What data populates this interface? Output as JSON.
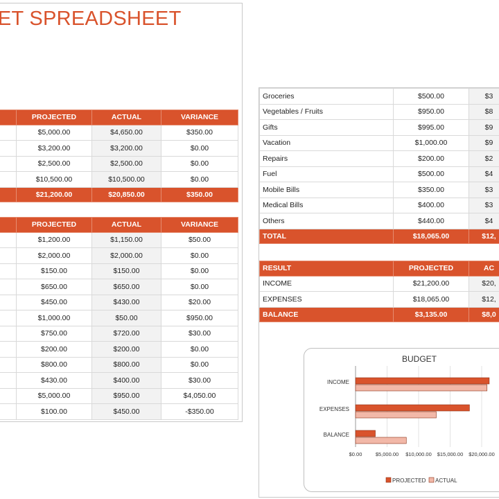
{
  "title": "GET SPREADSHEET",
  "income_table": {
    "headers": [
      "PROJECTED",
      "ACTUAL",
      "VARIANCE"
    ],
    "rows": [
      [
        "$5,000.00",
        "$4,650.00",
        "$350.00"
      ],
      [
        "$3,200.00",
        "$3,200.00",
        "$0.00"
      ],
      [
        "$2,500.00",
        "$2,500.00",
        "$0.00"
      ],
      [
        "$10,500.00",
        "$10,500.00",
        "$0.00"
      ]
    ],
    "total": [
      "$21,200.00",
      "$20,850.00",
      "$350.00"
    ]
  },
  "expense_table": {
    "headers": [
      "PROJECTED",
      "ACTUAL",
      "VARIANCE"
    ],
    "rows": [
      [
        "$1,200.00",
        "$1,150.00",
        "$50.00"
      ],
      [
        "$2,000.00",
        "$2,000.00",
        "$0.00"
      ],
      [
        "$150.00",
        "$150.00",
        "$0.00"
      ],
      [
        "$650.00",
        "$650.00",
        "$0.00"
      ],
      [
        "$450.00",
        "$430.00",
        "$20.00"
      ],
      [
        "$1,000.00",
        "$50.00",
        "$950.00"
      ],
      [
        "$750.00",
        "$720.00",
        "$30.00"
      ],
      [
        "$200.00",
        "$200.00",
        "$0.00"
      ],
      [
        "$800.00",
        "$800.00",
        "$0.00"
      ],
      [
        "$430.00",
        "$400.00",
        "$30.00"
      ],
      [
        "$5,000.00",
        "$950.00",
        "$4,050.00"
      ],
      [
        "$100.00",
        "$450.00",
        "-$350.00"
      ]
    ]
  },
  "expense_table_cont": {
    "rows": [
      [
        "Groceries",
        "$500.00",
        "$3"
      ],
      [
        "Vegetables / Fruits",
        "$950.00",
        "$8"
      ],
      [
        "Gifts",
        "$995.00",
        "$9"
      ],
      [
        "Vacation",
        "$1,000.00",
        "$9"
      ],
      [
        "Repairs",
        "$200.00",
        "$2"
      ],
      [
        "Fuel",
        "$500.00",
        "$4"
      ],
      [
        "Mobile Bills",
        "$350.00",
        "$3"
      ],
      [
        "Medical Bills",
        "$400.00",
        "$3"
      ],
      [
        "Others",
        "$440.00",
        "$4"
      ]
    ],
    "total": [
      "TOTAL",
      "$18,065.00",
      "$12,"
    ]
  },
  "result_table": {
    "headers": [
      "RESULT",
      "PROJECTED",
      "AC"
    ],
    "rows": [
      [
        "INCOME",
        "$21,200.00",
        "$20,"
      ],
      [
        "EXPENSES",
        "$18,065.00",
        "$12,"
      ]
    ],
    "balance": [
      "BALANCE",
      "$3,135.00",
      "$8,0"
    ]
  },
  "colors": {
    "accent": "#d9532c",
    "projected": "#d9532c",
    "actual": "#f2b8a8"
  },
  "chart_data": {
    "type": "bar",
    "orientation": "horizontal",
    "title": "BUDGET",
    "categories": [
      "INCOME",
      "EXPENSES",
      "BALANCE"
    ],
    "series": [
      {
        "name": "PROJECTED",
        "values": [
          21200,
          18065,
          3135
        ]
      },
      {
        "name": "ACTUAL",
        "values": [
          20850,
          12800,
          8050
        ]
      }
    ],
    "tick_labels": [
      "$0.00",
      "$5,000.00",
      "$10,000.00",
      "$15,000.00",
      "$20,000.00"
    ],
    "xlim": [
      0,
      25000
    ],
    "grid": true,
    "legend": "bottom"
  }
}
